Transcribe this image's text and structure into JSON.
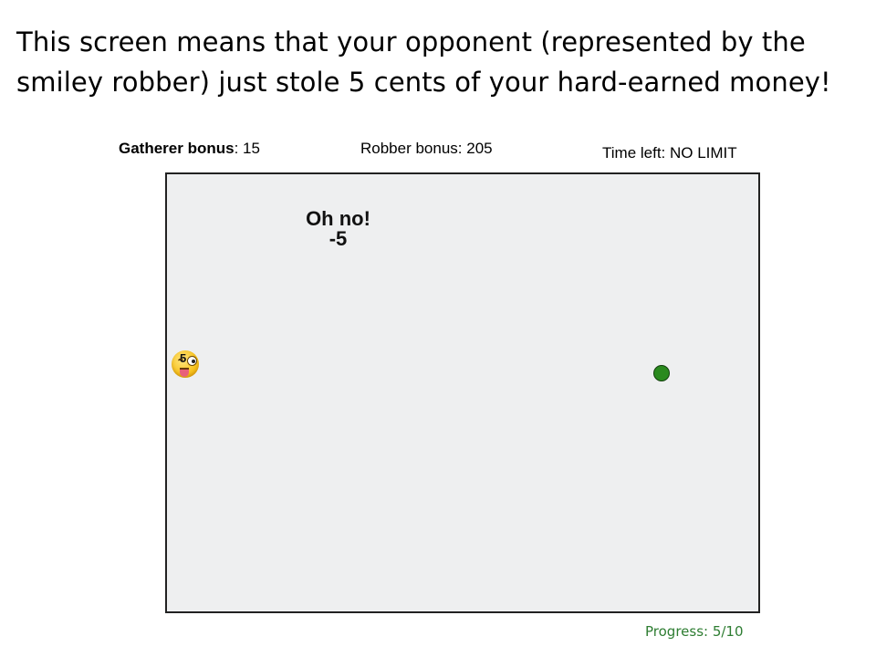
{
  "instruction": {
    "text": "This screen means that your opponent (represented by the smiley robber) just stole 5 cents of your hard-earned money!"
  },
  "hud": {
    "gatherer_label": "Gatherer bonus",
    "gatherer_value": ": 15",
    "robber_text": "Robber bonus: 205",
    "time_left_text": "Time left: NO LIMIT"
  },
  "board": {
    "message_title": "Oh no!",
    "message_delta": "-5",
    "robber_amount": "5",
    "robber_icon": "smiley-robber-icon",
    "player_icon": "green-dot"
  },
  "footer": {
    "progress_text": "Progress: 5/10"
  },
  "colors": {
    "board_background": "#eeeff0",
    "player_dot": "#2a8a1e",
    "progress_text": "#2e7d32",
    "robber_face": "#f7c21c"
  }
}
